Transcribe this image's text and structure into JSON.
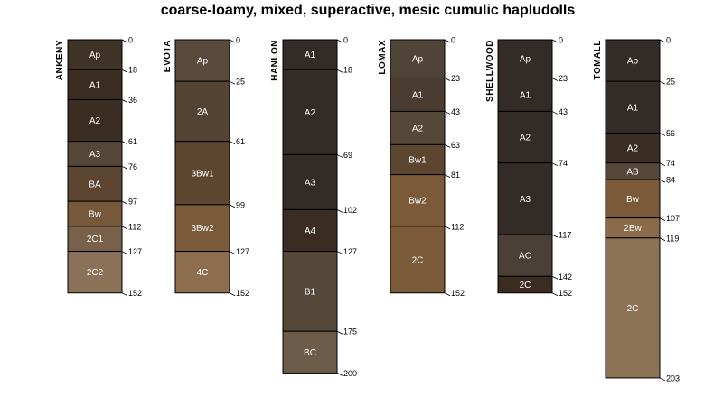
{
  "chart_data": {
    "type": "soil-profile-sketch",
    "title": "coarse-loamy, mixed, superactive, mesic cumulic hapludolls",
    "depth_unit": "cm",
    "profiles": [
      {
        "name": "ANKENY",
        "horizons": [
          {
            "name": "Ap",
            "top": 0,
            "bottom": 18,
            "color": "#3f3226"
          },
          {
            "name": "A1",
            "top": 18,
            "bottom": 36,
            "color": "#3a2c20"
          },
          {
            "name": "A2",
            "top": 36,
            "bottom": 61,
            "color": "#3b2d21"
          },
          {
            "name": "A3",
            "top": 61,
            "bottom": 76,
            "color": "#564838"
          },
          {
            "name": "BA",
            "top": 76,
            "bottom": 97,
            "color": "#5c4631"
          },
          {
            "name": "Bw",
            "top": 97,
            "bottom": 112,
            "color": "#76583b"
          },
          {
            "name": "2C1",
            "top": 112,
            "bottom": 127,
            "color": "#79604a"
          },
          {
            "name": "2C2",
            "top": 127,
            "bottom": 152,
            "color": "#8a7158"
          }
        ],
        "depth_labels": [
          "0",
          "18",
          "36",
          "61",
          "76",
          "97",
          "112",
          "127",
          "152"
        ]
      },
      {
        "name": "EVOTA",
        "horizons": [
          {
            "name": "Ap",
            "top": 0,
            "bottom": 25,
            "color": "#5a4a3c"
          },
          {
            "name": "2A",
            "top": 25,
            "bottom": 61,
            "color": "#544434"
          },
          {
            "name": "3Bw1",
            "top": 61,
            "bottom": 99,
            "color": "#5c4630"
          },
          {
            "name": "3Bw2",
            "top": 99,
            "bottom": 127,
            "color": "#7b5a39"
          },
          {
            "name": "4C",
            "top": 127,
            "bottom": 152,
            "color": "#8c6e4e"
          }
        ],
        "depth_labels": [
          "0",
          "25",
          "61",
          "99",
          "127",
          "152"
        ]
      },
      {
        "name": "HANLON",
        "horizons": [
          {
            "name": "A1",
            "top": 0,
            "bottom": 18,
            "color": "#332b27"
          },
          {
            "name": "A2",
            "top": 18,
            "bottom": 69,
            "color": "#332b27"
          },
          {
            "name": "A3",
            "top": 69,
            "bottom": 102,
            "color": "#332b27"
          },
          {
            "name": "A4",
            "top": 102,
            "bottom": 127,
            "color": "#3a2c20"
          },
          {
            "name": "B1",
            "top": 127,
            "bottom": 175,
            "color": "#564838"
          },
          {
            "name": "BC",
            "top": 175,
            "bottom": 200,
            "color": "#6e5c4a"
          }
        ],
        "depth_labels": [
          "0",
          "18",
          "69",
          "102",
          "127",
          "175",
          "200"
        ]
      },
      {
        "name": "LOMAX",
        "horizons": [
          {
            "name": "Ap",
            "top": 0,
            "bottom": 23,
            "color": "#504438"
          },
          {
            "name": "A1",
            "top": 23,
            "bottom": 43,
            "color": "#4a3c30"
          },
          {
            "name": "A2",
            "top": 43,
            "bottom": 63,
            "color": "#564838"
          },
          {
            "name": "Bw1",
            "top": 63,
            "bottom": 81,
            "color": "#5c4630"
          },
          {
            "name": "Bw2",
            "top": 81,
            "bottom": 112,
            "color": "#7b5a39"
          },
          {
            "name": "2C",
            "top": 112,
            "bottom": 152,
            "color": "#7b5a39"
          }
        ],
        "depth_labels": [
          "0",
          "23",
          "43",
          "63",
          "81",
          "112",
          "152"
        ]
      },
      {
        "name": "SHELLWOOD",
        "horizons": [
          {
            "name": "Ap",
            "top": 0,
            "bottom": 23,
            "color": "#332b27"
          },
          {
            "name": "A1",
            "top": 23,
            "bottom": 43,
            "color": "#332b27"
          },
          {
            "name": "A2",
            "top": 43,
            "bottom": 74,
            "color": "#332b27"
          },
          {
            "name": "A3",
            "top": 74,
            "bottom": 117,
            "color": "#332b27"
          },
          {
            "name": "AC",
            "top": 117,
            "bottom": 142,
            "color": "#4a4038"
          },
          {
            "name": "2C",
            "top": 142,
            "bottom": 152,
            "color": "#3a2c20"
          }
        ],
        "depth_labels": [
          "0",
          "23",
          "43",
          "74",
          "117",
          "142",
          "152"
        ]
      },
      {
        "name": "TOMALL",
        "horizons": [
          {
            "name": "Ap",
            "top": 0,
            "bottom": 25,
            "color": "#332b27"
          },
          {
            "name": "A1",
            "top": 25,
            "bottom": 56,
            "color": "#332b27"
          },
          {
            "name": "A2",
            "top": 56,
            "bottom": 74,
            "color": "#3a2c20"
          },
          {
            "name": "AB",
            "top": 74,
            "bottom": 84,
            "color": "#564838"
          },
          {
            "name": "Bw",
            "top": 84,
            "bottom": 107,
            "color": "#7b5a39"
          },
          {
            "name": "2Bw",
            "top": 107,
            "bottom": 119,
            "color": "#8a6a48"
          },
          {
            "name": "2C",
            "top": 119,
            "bottom": 203,
            "color": "#8c7356"
          }
        ],
        "depth_labels": [
          "0",
          "25",
          "56",
          "74",
          "84",
          "107",
          "119",
          "203"
        ]
      }
    ]
  }
}
